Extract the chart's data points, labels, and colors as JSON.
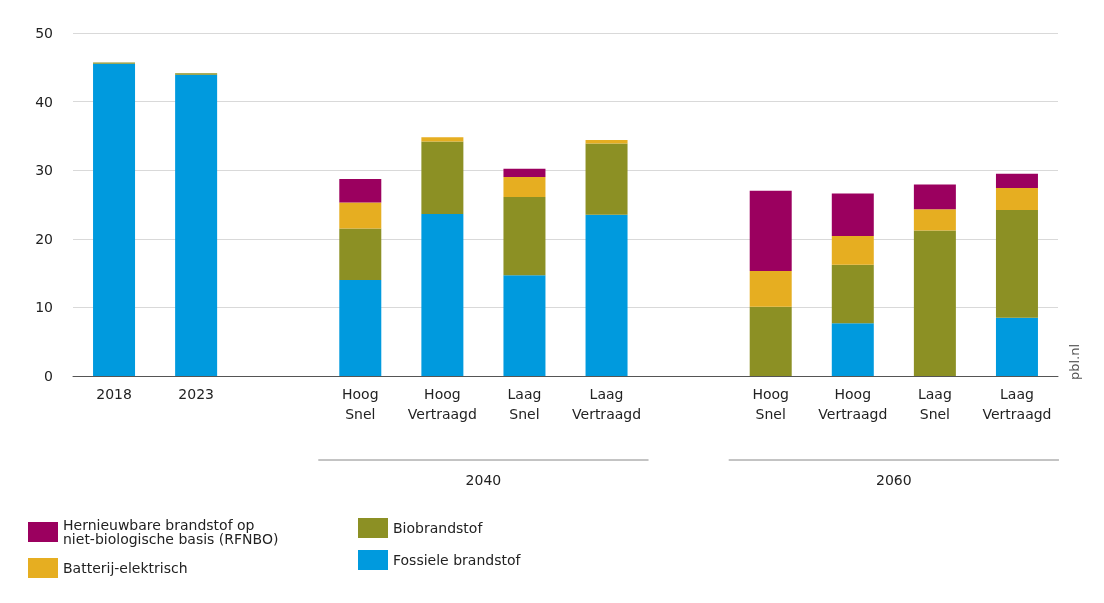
{
  "chart_data": {
    "type": "bar",
    "stacked": true,
    "categories": [
      "2018",
      "2023",
      null,
      "Hoog\nSnel",
      "Hoog\nVertraagd",
      "Laag\nSnel",
      "Laag\nVertraagd",
      null,
      "Hoog\nSnel",
      "Hoog\nVertraagd",
      "Laag\nSnel",
      "Laag\nVertraagd"
    ],
    "series": [
      {
        "name": "Fossiele brandstof",
        "color": "#009ade",
        "values": [
          45.5,
          43.9,
          null,
          14.0,
          23.6,
          14.7,
          23.5,
          null,
          0,
          7.7,
          0,
          8.5
        ]
      },
      {
        "name": "Biobrandstof",
        "color": "#8c9024",
        "values": [
          0.2,
          0.25,
          null,
          7.5,
          10.6,
          11.4,
          10.4,
          null,
          10.1,
          8.5,
          21.2,
          15.7
        ]
      },
      {
        "name": "Batterij-elektrisch",
        "color": "#e6ae21",
        "values": [
          0,
          0,
          null,
          3.8,
          0.6,
          2.9,
          0.5,
          null,
          5.2,
          4.2,
          3.1,
          3.2
        ]
      },
      {
        "name": "Hernieuwbare brandstof op niet-biologische basis (RFNBO)",
        "color": "#9b005f",
        "values": [
          0,
          0,
          null,
          3.4,
          0,
          1.2,
          0,
          null,
          11.7,
          6.2,
          3.6,
          2.1
        ]
      }
    ],
    "ylim": [
      0,
      50
    ],
    "yticks": [
      0,
      10,
      20,
      30,
      40,
      50
    ],
    "grid": "y",
    "legend": "bottom left",
    "annotations": [
      "2040",
      "2060",
      "pbl.nl"
    ]
  }
}
